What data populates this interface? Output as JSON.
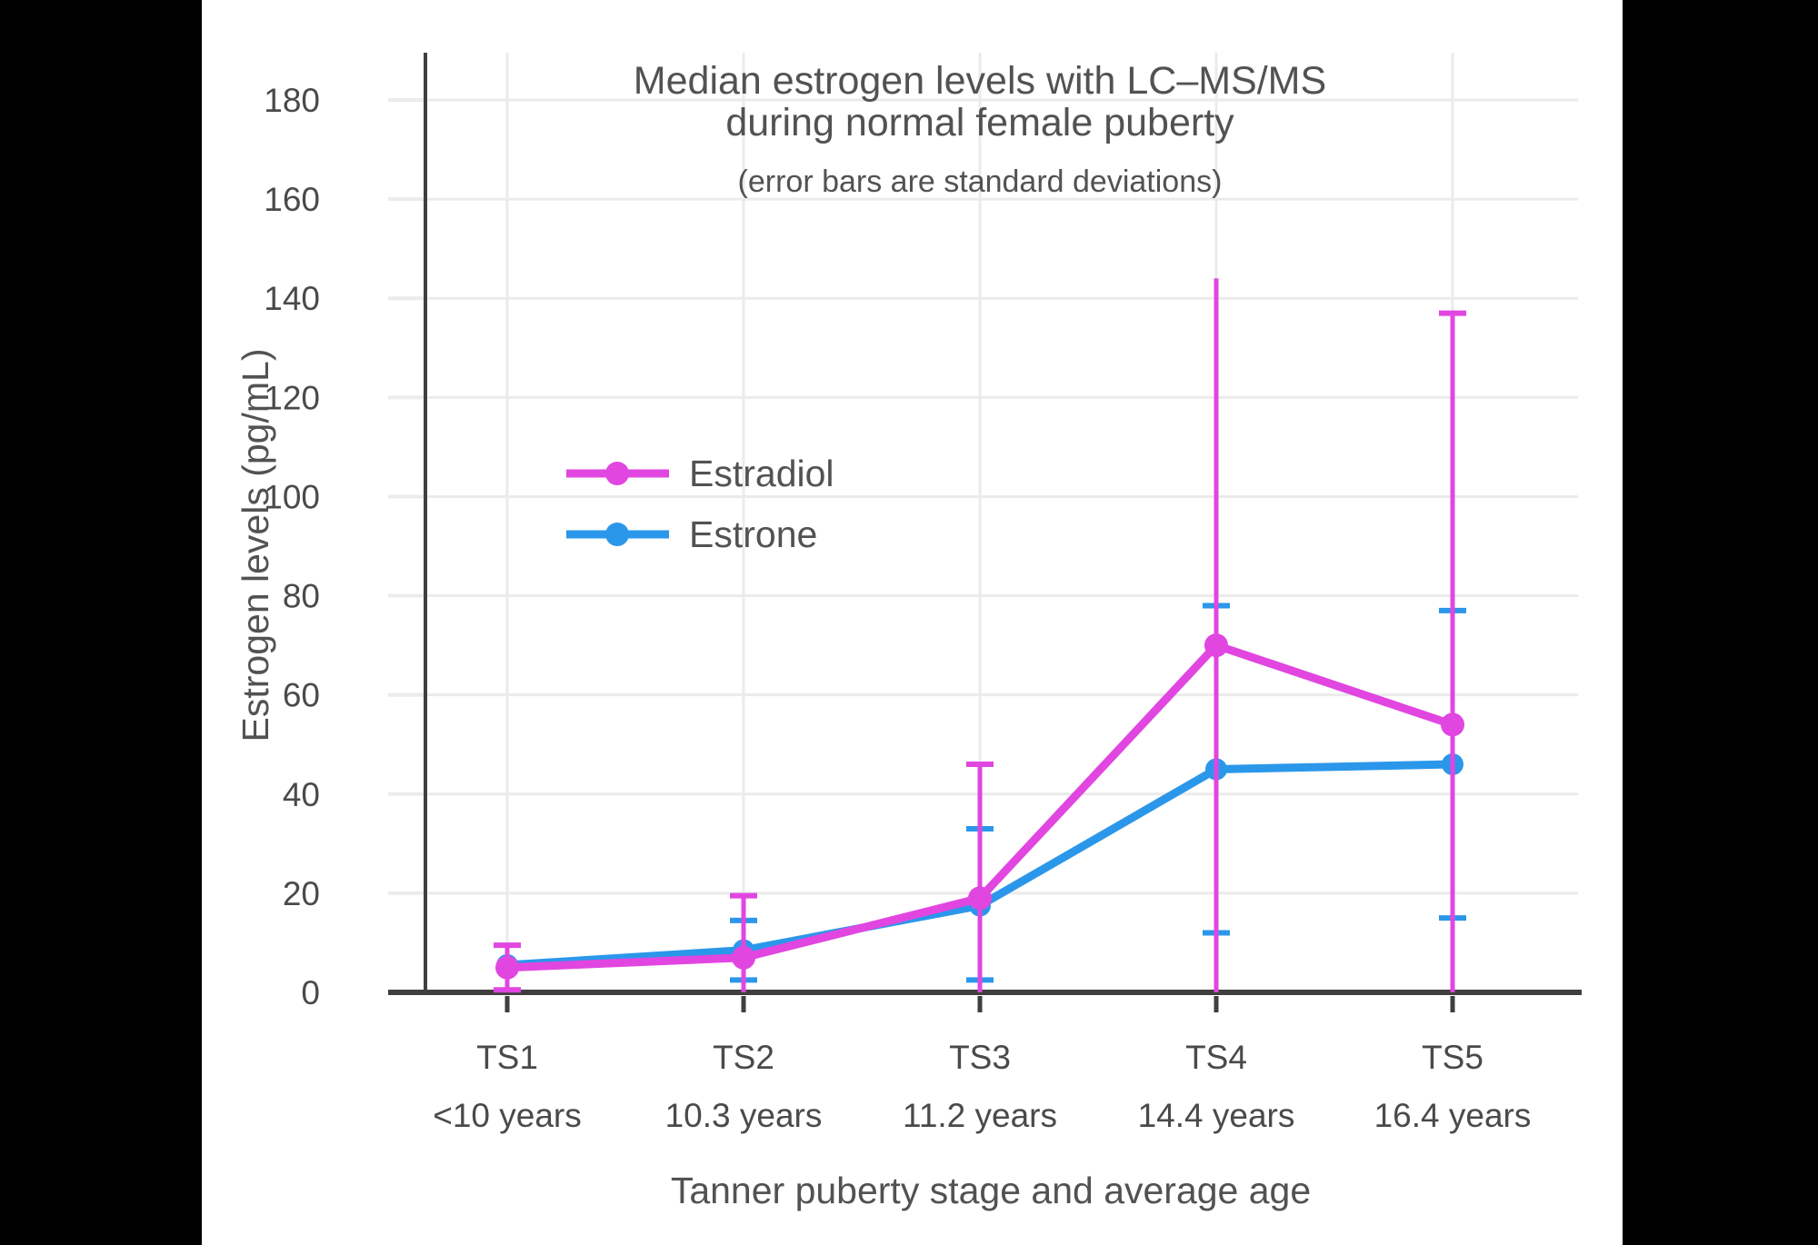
{
  "page": {
    "background_color": "#000000",
    "content_background": "#ffffff"
  },
  "colors": {
    "estradiol": "#e146e1",
    "estrone": "#2b97ea",
    "text": "#525252",
    "tick_text": "#4a4a4a",
    "axis_line": "#3f3f3f",
    "gridline": "#ebebeb"
  },
  "chart_data": {
    "type": "line",
    "title_line1": "Median estrogen levels with LC–MS/MS",
    "title_line2": "during normal female puberty",
    "subtitle": "(error bars are standard deviations)",
    "xlabel": "Tanner puberty stage and average age",
    "ylabel": "Estrogen levels (pg/mL)",
    "categories": [
      "TS1",
      "TS2",
      "TS3",
      "TS4",
      "TS5"
    ],
    "category_sublabels": [
      "<10 years",
      "10.3 years",
      "11.2 years",
      "14.4 years",
      "16.4 years"
    ],
    "y_ticks": [
      0,
      20,
      40,
      60,
      80,
      100,
      120,
      140,
      160,
      180
    ],
    "ylim": [
      0,
      190
    ],
    "grid": true,
    "legend_position": "inside-upper-left",
    "error_bar_note": "whiskers clipped at 0 where standard deviation extends below axis",
    "series": [
      {
        "name": "Estradiol",
        "color": "#e146e1",
        "values": [
          5,
          7,
          19,
          70,
          54
        ],
        "error_top": [
          9.5,
          19.5,
          46,
          144,
          137
        ],
        "error_bottom": [
          0.5,
          0,
          0,
          0,
          0
        ],
        "cap_top": [
          true,
          true,
          true,
          false,
          true
        ],
        "cap_bottom": [
          true,
          false,
          false,
          false,
          false
        ]
      },
      {
        "name": "Estrone",
        "color": "#2b97ea",
        "values": [
          5.5,
          8.5,
          17.5,
          45,
          46
        ],
        "error_top": [
          null,
          14.5,
          33,
          78,
          77
        ],
        "error_bottom": [
          null,
          2.5,
          2.5,
          12,
          15
        ],
        "cap_top": [
          false,
          true,
          true,
          true,
          true
        ],
        "cap_bottom": [
          false,
          true,
          true,
          true,
          true
        ]
      }
    ]
  }
}
